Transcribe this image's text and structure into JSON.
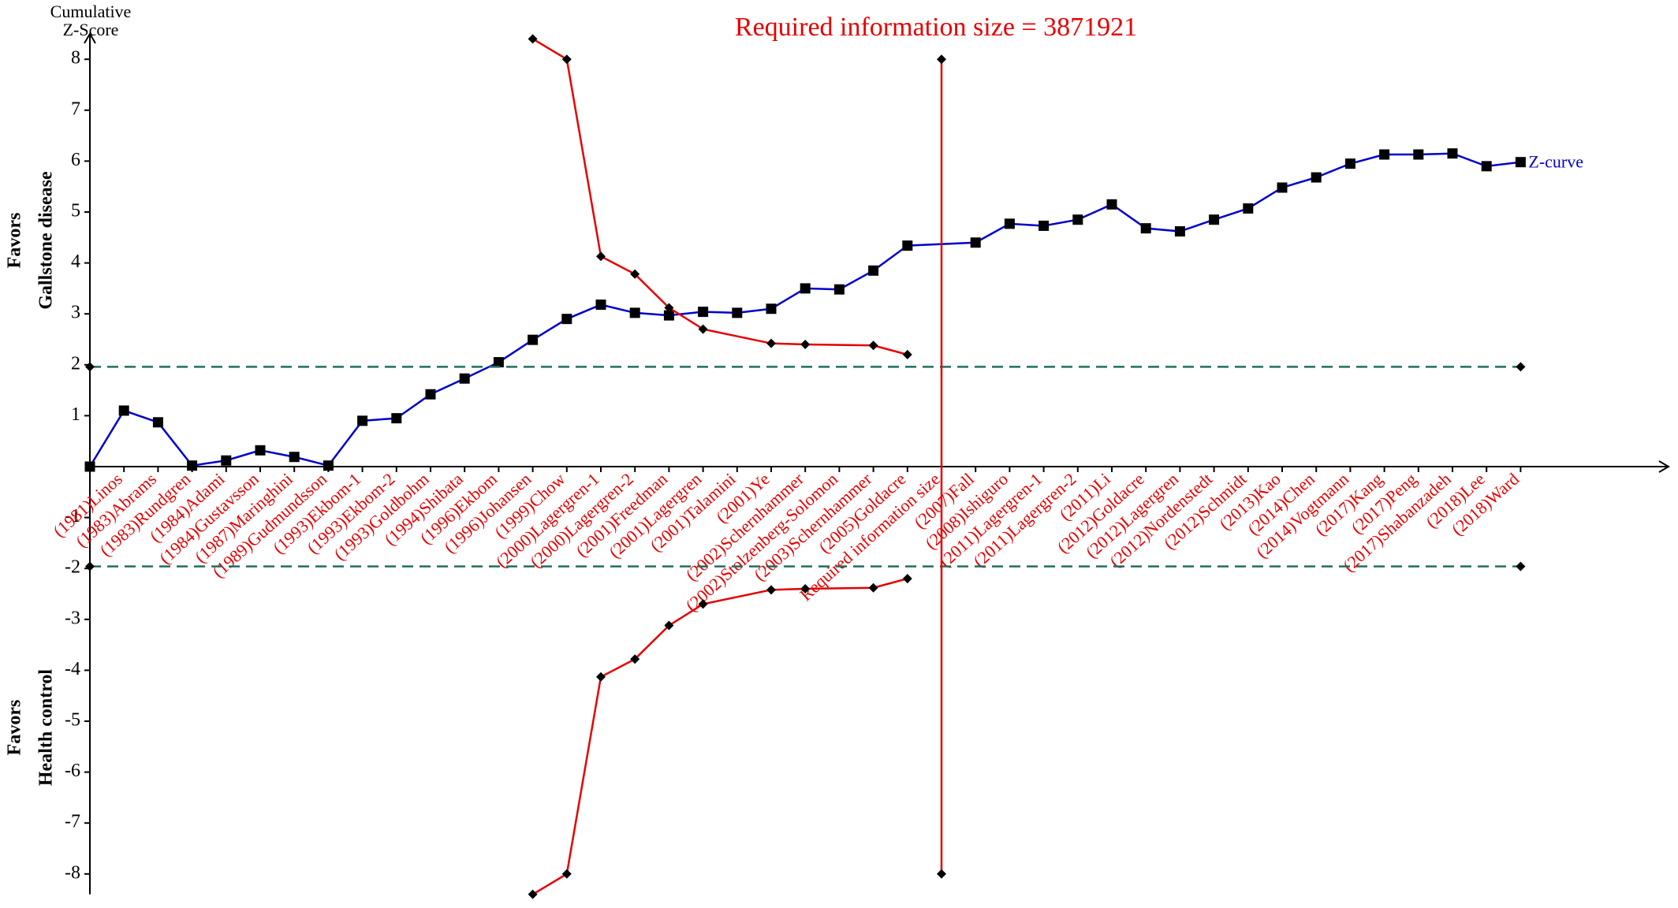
{
  "chart_data": {
    "type": "line",
    "title": "Required information size = 3871921",
    "y_label": [
      "Cumulative",
      "Z-Score"
    ],
    "y_annotations": [
      [
        "Favors",
        "Gallstone disease"
      ],
      [
        "Favors",
        "Health control"
      ]
    ],
    "categories": [
      null,
      "(1981)Linos",
      "(1983)Abrams",
      "(1983)Rundgren",
      "(1984)Adami",
      "(1984)Gustavsson",
      "(1987)Maringhini",
      "(1989)Gudmundsson",
      "(1993)Ekbom-1",
      "(1993)Ekbom-2",
      "(1993)Goldbohm",
      "(1994)Shibata",
      "(1996)Ekbom",
      "(1996)Johansen",
      "(1999)Chow",
      "(2000)Lagergren-1",
      "(2000)Lagergren-2",
      "(2001)Freedman",
      "(2001)Lagergren",
      "(2001)Talamini",
      "(2001)Ye",
      "(2002)Schernhammer",
      "(2002)Stolzenberg-Solomon",
      "(2003)Schernhammer",
      "(2005)Goldacre",
      "Required information size",
      "(2007)Fall",
      "(2008)Ishiguro",
      "(2011)Lagergren-1",
      "(2011)Lagergren-2",
      "(2011)Li",
      "(2012)Goldacre",
      "(2012)Lagergren",
      "(2012)Nordenstedt",
      "(2012)Schmidt",
      "(2013)Kao",
      "(2014)Chen",
      "(2014)Vogtmann",
      "(2017)Kang",
      "(2017)Peng",
      "(2017)Shabanzadeh",
      "(2018)Lee",
      "(2018)Ward"
    ],
    "series": [
      {
        "name": "Z-curve",
        "color": "#0000cc",
        "marker": "square",
        "x": [
          0,
          1,
          2,
          3,
          4,
          5,
          6,
          7,
          8,
          9,
          10,
          11,
          12,
          13,
          14,
          15,
          16,
          17,
          18,
          19,
          20,
          21,
          22,
          23,
          24,
          26,
          27,
          28,
          29,
          30,
          31,
          32,
          33,
          34,
          35,
          36,
          37,
          38,
          39,
          40,
          41,
          42
        ],
        "values": [
          0,
          1.1,
          0.87,
          0.02,
          0.12,
          0.32,
          0.19,
          0.02,
          0.9,
          0.95,
          1.42,
          1.73,
          2.05,
          2.49,
          2.9,
          3.18,
          3.02,
          2.97,
          3.04,
          3.02,
          3.1,
          3.5,
          3.48,
          3.85,
          4.34,
          4.4,
          4.77,
          4.73,
          4.85,
          5.15,
          4.68,
          4.62,
          4.85,
          5.07,
          5.48,
          5.68,
          5.95,
          6.13,
          6.13,
          6.15,
          5.9,
          5.98
        ]
      },
      {
        "color": "#e60000",
        "marker": "diamond",
        "x": [
          13,
          14,
          15,
          16,
          17,
          18,
          20,
          21,
          23,
          24
        ],
        "values": [
          8.4,
          8.0,
          4.13,
          3.78,
          3.12,
          2.7,
          2.42,
          2.4,
          2.38,
          2.2
        ]
      },
      {
        "color": "#e60000",
        "marker": "diamond",
        "x": [
          13,
          14,
          15,
          16,
          17,
          18,
          20,
          21,
          23,
          24
        ],
        "values": [
          -8.4,
          -8.0,
          -4.13,
          -3.78,
          -3.12,
          -2.7,
          -2.42,
          -2.4,
          -2.38,
          -2.2
        ]
      },
      {
        "color": "#1f6e5f",
        "marker": "diamond",
        "dash": true,
        "x": [
          0,
          42
        ],
        "values": [
          1.96,
          1.96
        ]
      },
      {
        "color": "#1f6e5f",
        "marker": "diamond",
        "dash": true,
        "x": [
          0,
          42
        ],
        "values": [
          -1.96,
          -1.96
        ]
      },
      {
        "color": "#e60000",
        "marker": "diamond",
        "x": [
          25,
          25
        ],
        "values": [
          -8,
          8
        ]
      }
    ],
    "ylim": [
      -8.4,
      8.5
    ],
    "yticks": [
      -8,
      -7,
      -6,
      -5,
      -4,
      -3,
      -2,
      -1,
      1,
      2,
      3,
      4,
      5,
      6,
      7,
      8
    ]
  }
}
